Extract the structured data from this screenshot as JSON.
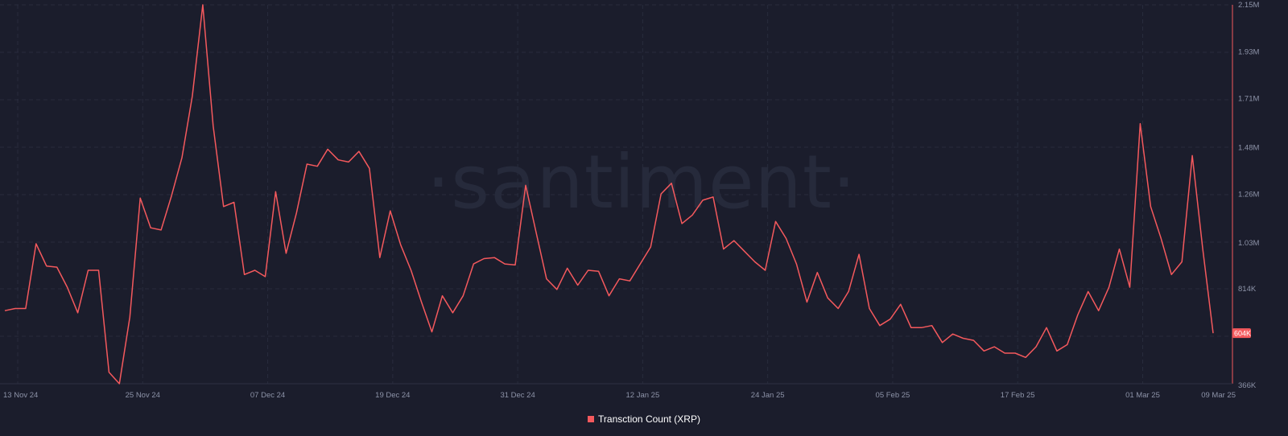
{
  "watermark": "·santiment·",
  "chart_data": {
    "type": "line",
    "title": "",
    "xlabel": "",
    "ylabel": "",
    "ylim": [
      366000,
      2150000
    ],
    "y_tick_labels": [
      "2.15M",
      "1.93M",
      "1.71M",
      "1.48M",
      "1.26M",
      "1.03M",
      "814K",
      "366K"
    ],
    "y_tick_values": [
      2150000,
      1930000,
      1710000,
      1480000,
      1260000,
      1030000,
      814000,
      366000
    ],
    "x_tick_labels": [
      "13 Nov 24",
      "25 Nov 24",
      "07 Dec 24",
      "19 Dec 24",
      "31 Dec 24",
      "12 Jan 25",
      "24 Jan 25",
      "05 Feb 25",
      "17 Feb 25",
      "01 Mar 25",
      "09 Mar 25"
    ],
    "x_tick_dates": [
      "2024-11-13",
      "2024-11-25",
      "2024-12-07",
      "2024-12-19",
      "2024-12-31",
      "2025-01-12",
      "2025-01-24",
      "2025-02-05",
      "2025-02-17",
      "2025-03-01",
      "2025-03-09"
    ],
    "grid": true,
    "legend_position": "bottom-center",
    "last_value_label": "604K",
    "series": [
      {
        "name": "Transction Count (XRP)",
        "color": "#f4595d",
        "x": [
          "2024-11-13",
          "2024-11-14",
          "2024-11-15",
          "2024-11-16",
          "2024-11-17",
          "2024-11-18",
          "2024-11-19",
          "2024-11-20",
          "2024-11-21",
          "2024-11-22",
          "2024-11-23",
          "2024-11-24",
          "2024-11-25",
          "2024-11-26",
          "2024-11-27",
          "2024-11-28",
          "2024-11-29",
          "2024-11-30",
          "2024-12-01",
          "2024-12-02",
          "2024-12-03",
          "2024-12-04",
          "2024-12-05",
          "2024-12-06",
          "2024-12-07",
          "2024-12-08",
          "2024-12-09",
          "2024-12-10",
          "2024-12-11",
          "2024-12-12",
          "2024-12-13",
          "2024-12-14",
          "2024-12-15",
          "2024-12-16",
          "2024-12-17",
          "2024-12-18",
          "2024-12-19",
          "2024-12-20",
          "2024-12-21",
          "2024-12-22",
          "2024-12-23",
          "2024-12-24",
          "2024-12-25",
          "2024-12-26",
          "2024-12-27",
          "2024-12-28",
          "2024-12-29",
          "2024-12-30",
          "2024-12-31",
          "2025-01-01",
          "2025-01-02",
          "2025-01-03",
          "2025-01-04",
          "2025-01-05",
          "2025-01-06",
          "2025-01-07",
          "2025-01-08",
          "2025-01-09",
          "2025-01-10",
          "2025-01-11",
          "2025-01-12",
          "2025-01-13",
          "2025-01-14",
          "2025-01-15",
          "2025-01-16",
          "2025-01-17",
          "2025-01-18",
          "2025-01-19",
          "2025-01-20",
          "2025-01-21",
          "2025-01-22",
          "2025-01-23",
          "2025-01-24",
          "2025-01-25",
          "2025-01-26",
          "2025-01-27",
          "2025-01-28",
          "2025-01-29",
          "2025-01-30",
          "2025-01-31",
          "2025-02-01",
          "2025-02-02",
          "2025-02-03",
          "2025-02-04",
          "2025-02-05",
          "2025-02-06",
          "2025-02-07",
          "2025-02-08",
          "2025-02-09",
          "2025-02-10",
          "2025-02-11",
          "2025-02-12",
          "2025-02-13",
          "2025-02-14",
          "2025-02-15",
          "2025-02-16",
          "2025-02-17",
          "2025-02-18",
          "2025-02-19",
          "2025-02-20",
          "2025-02-21",
          "2025-02-22",
          "2025-02-23",
          "2025-02-24",
          "2025-02-25",
          "2025-02-26",
          "2025-02-27",
          "2025-02-28",
          "2025-03-01",
          "2025-03-02",
          "2025-03-03",
          "2025-03-04",
          "2025-03-05",
          "2025-03-06",
          "2025-03-07",
          "2025-03-08",
          "2025-03-09"
        ],
        "values": [
          710000,
          720000,
          720000,
          1025000,
          920000,
          915000,
          820000,
          700000,
          900000,
          900000,
          420000,
          366000,
          680000,
          1240000,
          1100000,
          1090000,
          1250000,
          1430000,
          1720000,
          2150000,
          1580000,
          1200000,
          1220000,
          880000,
          900000,
          870000,
          1270000,
          980000,
          1170000,
          1400000,
          1390000,
          1470000,
          1420000,
          1410000,
          1460000,
          1380000,
          960000,
          1180000,
          1020000,
          900000,
          750000,
          610000,
          780000,
          700000,
          780000,
          930000,
          955000,
          960000,
          930000,
          925000,
          1300000,
          1080000,
          860000,
          810000,
          910000,
          830000,
          900000,
          895000,
          780000,
          860000,
          850000,
          930000,
          1010000,
          1260000,
          1310000,
          1120000,
          1160000,
          1230000,
          1245000,
          1000000,
          1040000,
          990000,
          940000,
          900000,
          1130000,
          1050000,
          930000,
          750000,
          890000,
          770000,
          720000,
          800000,
          975000,
          720000,
          640000,
          670000,
          740000,
          630000,
          630000,
          640000,
          560000,
          600000,
          580000,
          570000,
          520000,
          540000,
          510000,
          510000,
          490000,
          540000,
          630000,
          520000,
          550000,
          690000,
          800000,
          710000,
          820000,
          1000000,
          820000,
          1590000,
          1200000,
          1050000,
          880000,
          940000,
          1440000,
          1000000,
          604000
        ]
      }
    ]
  }
}
